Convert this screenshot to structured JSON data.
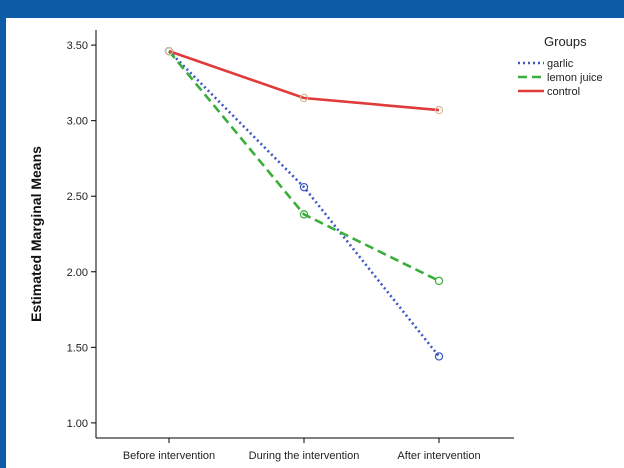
{
  "chart_data": {
    "type": "line",
    "title": "",
    "xlabel": "",
    "ylabel": "Estimated Marginal Means",
    "categories": [
      "Before intervention",
      "During the intervention",
      "After intervention"
    ],
    "ylim": [
      0.9,
      3.6
    ],
    "yticks": [
      "1.00",
      "1.50",
      "2.00",
      "2.50",
      "3.00",
      "3.50"
    ],
    "grid": false,
    "legend": {
      "title": "Groups",
      "placement": "right"
    },
    "series": [
      {
        "name": "garlic",
        "values": [
          3.46,
          2.56,
          1.44
        ],
        "color": "#3a57c4",
        "style": "dotted"
      },
      {
        "name": "lemon juice",
        "values": [
          3.46,
          2.38,
          1.94
        ],
        "color": "#3aae3a",
        "style": "dashed"
      },
      {
        "name": "control",
        "values": [
          3.46,
          3.15,
          3.07
        ],
        "color": "#e03a3a",
        "style": "solid"
      }
    ]
  }
}
